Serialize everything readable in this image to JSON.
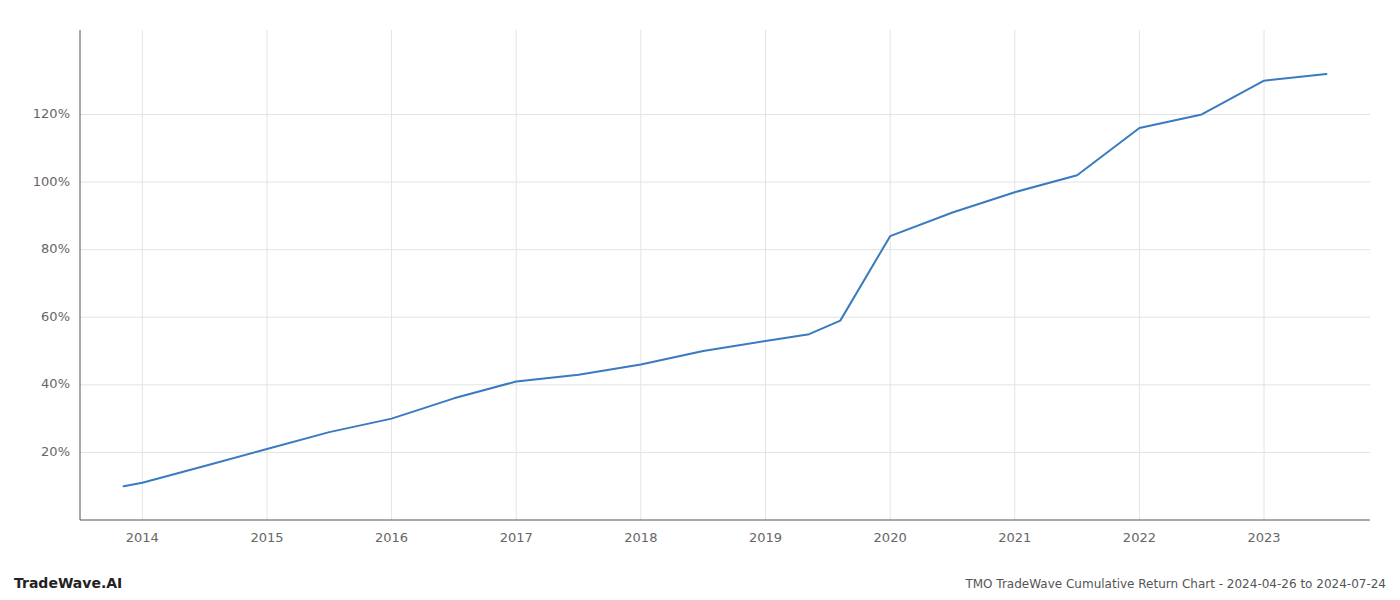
{
  "chart_data": {
    "type": "line",
    "title": "TMO TradeWave Cumulative Return Chart - 2024-04-26 to 2024-07-24",
    "annotations": [
      "TradeWave.AI"
    ],
    "x": [
      2013.85,
      2014.0,
      2014.5,
      2015.0,
      2015.5,
      2016.0,
      2016.5,
      2017.0,
      2017.5,
      2018.0,
      2018.5,
      2019.0,
      2019.35,
      2019.6,
      2020.0,
      2020.5,
      2021.0,
      2021.5,
      2022.0,
      2022.5,
      2023.0,
      2023.5
    ],
    "values": [
      10,
      11,
      16,
      21,
      26,
      30,
      36,
      41,
      43,
      46,
      50,
      53,
      55,
      59,
      84,
      91,
      97,
      102,
      116,
      120,
      130,
      132
    ],
    "color": "#3a7abf",
    "xlim": [
      2013.5,
      2023.85
    ],
    "ylim": [
      0,
      145
    ],
    "xticks": [
      2014,
      2015,
      2016,
      2017,
      2018,
      2019,
      2020,
      2021,
      2022,
      2023
    ],
    "yticks": [
      {
        "value": 20,
        "label": "20%"
      },
      {
        "value": 40,
        "label": "40%"
      },
      {
        "value": 60,
        "label": "60%"
      },
      {
        "value": 80,
        "label": "80%"
      },
      {
        "value": 100,
        "label": "100%"
      },
      {
        "value": 120,
        "label": "120%"
      }
    ],
    "grid": true
  }
}
